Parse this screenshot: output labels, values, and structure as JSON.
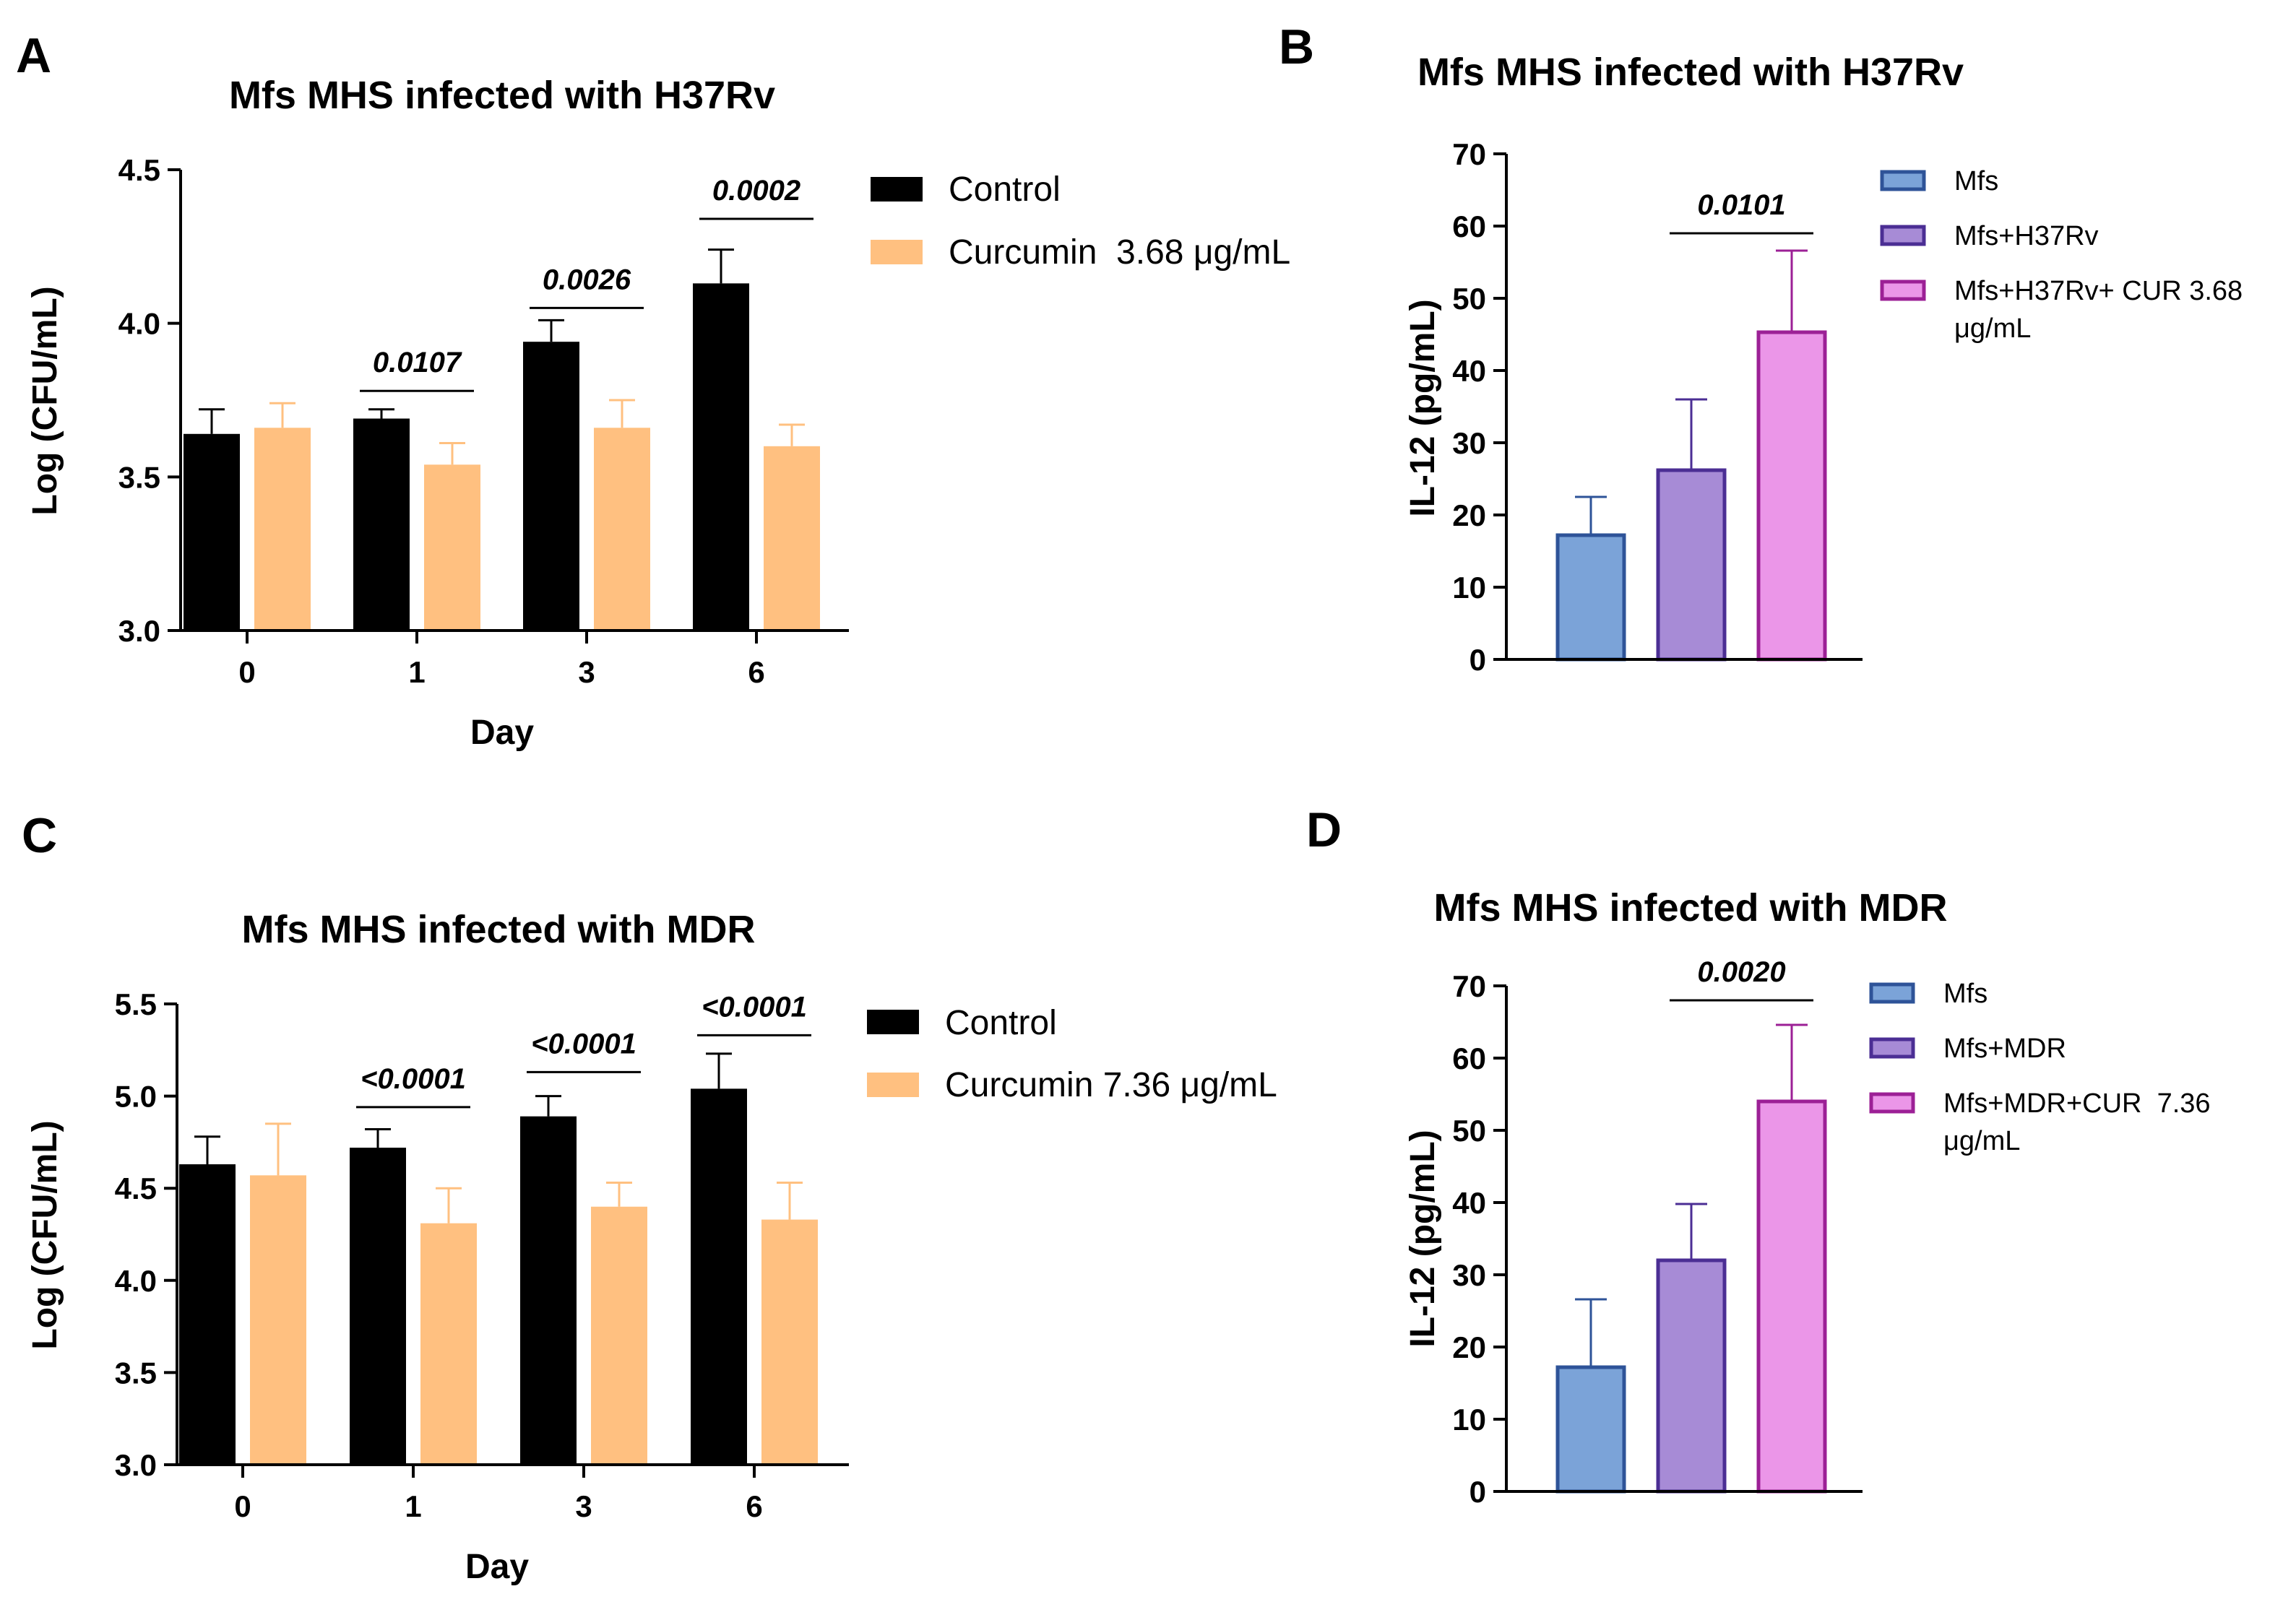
{
  "chart_data": [
    {
      "panel": "A",
      "type": "bar",
      "title": "Mfs MHS infected with H37Rv",
      "xlabel": "Day",
      "ylabel": "Log (CFU/mL)",
      "ylim": [
        3.0,
        4.5
      ],
      "yticks": [
        "3.0",
        "3.5",
        "4.0",
        "4.5"
      ],
      "categories": [
        "0",
        "1",
        "3",
        "6"
      ],
      "series": [
        {
          "name": "Control",
          "color": "#000000",
          "values": [
            3.64,
            3.69,
            3.94,
            4.13
          ],
          "errors": [
            0.08,
            0.03,
            0.07,
            0.11
          ]
        },
        {
          "name": "Curcumin  3.68 μg/mL",
          "color": "#FFC080",
          "values": [
            3.66,
            3.54,
            3.66,
            3.6
          ],
          "errors": [
            0.08,
            0.07,
            0.09,
            0.07
          ]
        }
      ],
      "annotations": [
        {
          "category": "1",
          "text": "0.0107",
          "y": 3.78
        },
        {
          "category": "3",
          "text": "0.0026",
          "y": 4.05
        },
        {
          "category": "6",
          "text": "0.0002",
          "y": 4.34
        }
      ]
    },
    {
      "panel": "B",
      "type": "bar",
      "title": "Mfs MHS infected with H37Rv",
      "xlabel": "",
      "ylabel": "IL-12 (pg/mL)",
      "ylim": [
        0,
        70
      ],
      "yticks": [
        "0",
        "10",
        "20",
        "30",
        "40",
        "50",
        "60",
        "70"
      ],
      "categories": [
        "Mfs",
        "Mfs+H37Rv",
        "Mfs+H37Rv+ CUR 3.68 μg/mL"
      ],
      "legend": [
        {
          "lines": [
            "Mfs"
          ]
        },
        {
          "lines": [
            "Mfs+H37Rv"
          ]
        },
        {
          "lines": [
            "Mfs+H37Rv+ CUR 3.68",
            "μg/mL"
          ]
        }
      ],
      "series": [
        {
          "name": "IL-12",
          "values": [
            17.2,
            26.2,
            45.3
          ],
          "errors": [
            5.3,
            9.8,
            11.3
          ]
        }
      ],
      "colors": {
        "fill": [
          "#7BA3D8",
          "#A78BD6",
          "#EB96E8"
        ],
        "stroke": [
          "#2E5398",
          "#4B2E94",
          "#9C2096"
        ]
      },
      "annotations": [
        {
          "from": 1,
          "to": 2,
          "text": "0.0101",
          "y": 59
        }
      ]
    },
    {
      "panel": "C",
      "type": "bar",
      "title": "Mfs MHS infected with MDR",
      "xlabel": "Day",
      "ylabel": "Log (CFU/mL)",
      "ylim": [
        3.0,
        5.5
      ],
      "yticks": [
        "3.0",
        "3.5",
        "4.0",
        "4.5",
        "5.0",
        "5.5"
      ],
      "categories": [
        "0",
        "1",
        "3",
        "6"
      ],
      "series": [
        {
          "name": "Control",
          "color": "#000000",
          "values": [
            4.63,
            4.72,
            4.89,
            5.04
          ],
          "errors": [
            0.15,
            0.1,
            0.11,
            0.19
          ]
        },
        {
          "name": "Curcumin 7.36 μg/mL",
          "color": "#FFC080",
          "values": [
            4.57,
            4.31,
            4.4,
            4.33
          ],
          "errors": [
            0.28,
            0.19,
            0.13,
            0.2
          ]
        }
      ],
      "annotations": [
        {
          "category": "1",
          "text": "<0.0001",
          "y": 4.94
        },
        {
          "category": "3",
          "text": "<0.0001",
          "y": 5.13
        },
        {
          "category": "6",
          "text": "<0.0001",
          "y": 5.33
        }
      ]
    },
    {
      "panel": "D",
      "type": "bar",
      "title": "Mfs MHS infected with MDR",
      "xlabel": "",
      "ylabel": "IL-12 (pg/mL)",
      "ylim": [
        0,
        70
      ],
      "yticks": [
        "0",
        "10",
        "20",
        "30",
        "40",
        "50",
        "60",
        "70"
      ],
      "categories": [
        "Mfs",
        "Mfs+MDR",
        "Mfs+MDR+CUR  7.36 μg/mL"
      ],
      "legend": [
        {
          "lines": [
            "Mfs"
          ]
        },
        {
          "lines": [
            "Mfs+MDR"
          ]
        },
        {
          "lines": [
            "Mfs+MDR+CUR  7.36",
            "μg/mL"
          ]
        }
      ],
      "series": [
        {
          "name": "IL-12",
          "values": [
            17.2,
            32.0,
            54.0
          ],
          "errors": [
            9.4,
            7.8,
            10.6
          ]
        }
      ],
      "colors": {
        "fill": [
          "#7BA3D8",
          "#A78BD6",
          "#EB96E8"
        ],
        "stroke": [
          "#2E5398",
          "#4B2E94",
          "#9C2096"
        ]
      },
      "annotations": [
        {
          "from": 1,
          "to": 2,
          "text": "0.0020",
          "y": 68
        }
      ]
    }
  ]
}
